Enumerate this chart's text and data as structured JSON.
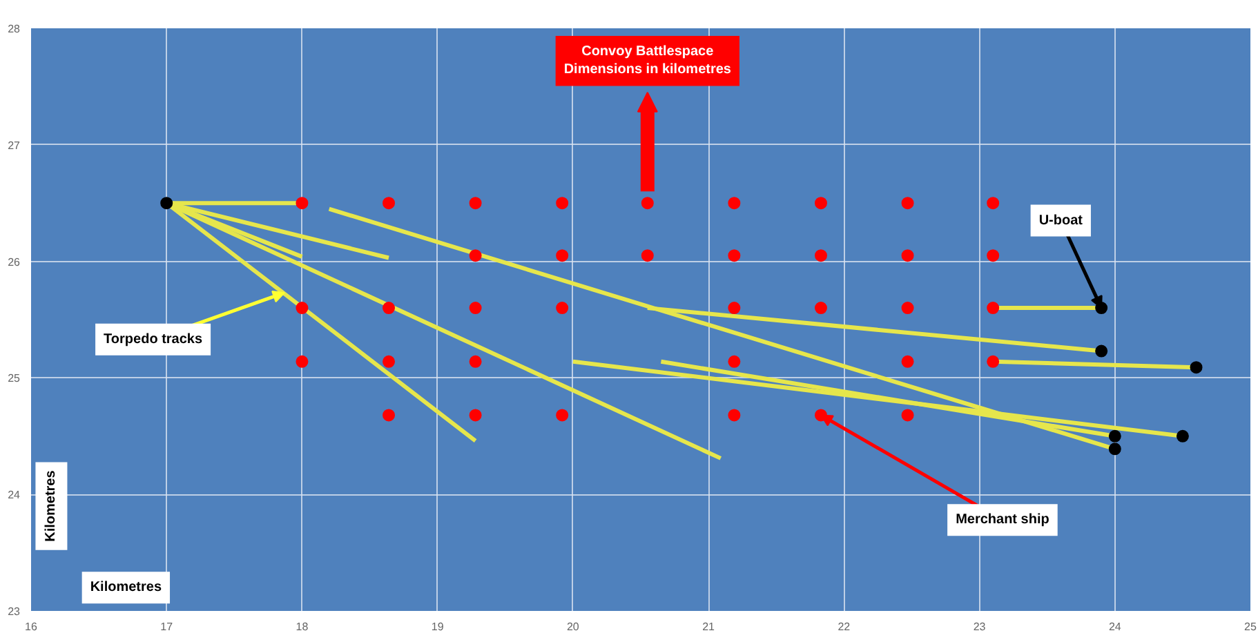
{
  "chart_data": {
    "type": "scatter",
    "title": "Convoy Battlespace Dimensions in kilometres",
    "xlabel": "Kilometres",
    "ylabel": "Kilometres",
    "xlim": [
      16,
      25
    ],
    "ylim": [
      23,
      28
    ],
    "xticks": [
      16,
      17,
      18,
      19,
      20,
      21,
      22,
      23,
      24,
      25
    ],
    "yticks": [
      23,
      24,
      25,
      26,
      27,
      28
    ],
    "grid": true,
    "annotations": [
      {
        "text": "U-boat",
        "x": 23.9,
        "y": 25.6
      },
      {
        "text": "Torpedo tracks",
        "x": 17.87,
        "y": 25.73
      },
      {
        "text": "Merchant ship",
        "x": 21.83,
        "y": 24.68
      }
    ],
    "series": [
      {
        "color": "#ff0000",
        "marker": "circle",
        "x": [
          18,
          18.64,
          19.28,
          19.92,
          20.55,
          21.19,
          21.83,
          22.47,
          23.1,
          19.28,
          19.92,
          20.55,
          21.19,
          21.83,
          22.47,
          23.1,
          18,
          18.64,
          19.28,
          19.92,
          21.19,
          21.83,
          22.47,
          23.1,
          18,
          18.64,
          19.28,
          21.19,
          22.47,
          23.1,
          18.64,
          19.28,
          19.92,
          21.19,
          21.83,
          22.47
        ],
        "values": [
          26.5,
          26.5,
          26.5,
          26.5,
          26.5,
          26.5,
          26.5,
          26.5,
          26.5,
          26.05,
          26.05,
          26.05,
          26.05,
          26.05,
          26.05,
          26.05,
          25.6,
          25.6,
          25.6,
          25.6,
          25.6,
          25.6,
          25.6,
          25.6,
          25.14,
          25.14,
          25.14,
          25.14,
          25.14,
          25.14,
          24.68,
          24.68,
          24.68,
          24.68,
          24.68,
          24.68
        ]
      },
      {
        "type": "line",
        "color": "#e6e64c",
        "x": [
          17,
          18
        ],
        "values": [
          26.5,
          26.5
        ]
      },
      {
        "type": "line",
        "color": "#e6e64c",
        "x": [
          17,
          18.64
        ],
        "values": [
          26.5,
          26.03
        ]
      },
      {
        "type": "line",
        "color": "#e6e64c",
        "x": [
          17,
          18
        ],
        "values": [
          26.5,
          26.04
        ]
      },
      {
        "type": "line",
        "color": "#e6e64c",
        "x": [
          17,
          19.28
        ],
        "values": [
          26.5,
          24.46
        ]
      },
      {
        "type": "line",
        "color": "#e6e64c",
        "x": [
          17,
          21.09
        ],
        "values": [
          26.5,
          24.31
        ]
      },
      {
        "type": "line",
        "color": "#e6e64c",
        "x": [
          18.2,
          24
        ],
        "values": [
          26.45,
          24.39
        ]
      },
      {
        "type": "line",
        "color": "#e6e64c",
        "x": [
          20.55,
          23.9
        ],
        "values": [
          25.6,
          25.23
        ]
      },
      {
        "type": "line",
        "color": "#e6e64c",
        "x": [
          23.1,
          23.9
        ],
        "values": [
          25.6,
          25.6
        ]
      },
      {
        "type": "line",
        "color": "#e6e64c",
        "x": [
          23.1,
          24.6
        ],
        "values": [
          25.14,
          25.09
        ]
      },
      {
        "type": "line",
        "color": "#e6e64c",
        "x": [
          20,
          24.5
        ],
        "values": [
          25.14,
          24.5
        ]
      },
      {
        "type": "line",
        "color": "#e6e64c",
        "x": [
          20.65,
          24
        ],
        "values": [
          25.14,
          24.5
        ]
      },
      {
        "color": "#000000",
        "marker": "circle",
        "x": [
          17,
          23.9,
          23.9,
          24.6,
          24,
          24,
          24.5
        ],
        "values": [
          26.5,
          25.6,
          25.23,
          25.09,
          24.5,
          24.39,
          24.5
        ]
      }
    ]
  }
}
